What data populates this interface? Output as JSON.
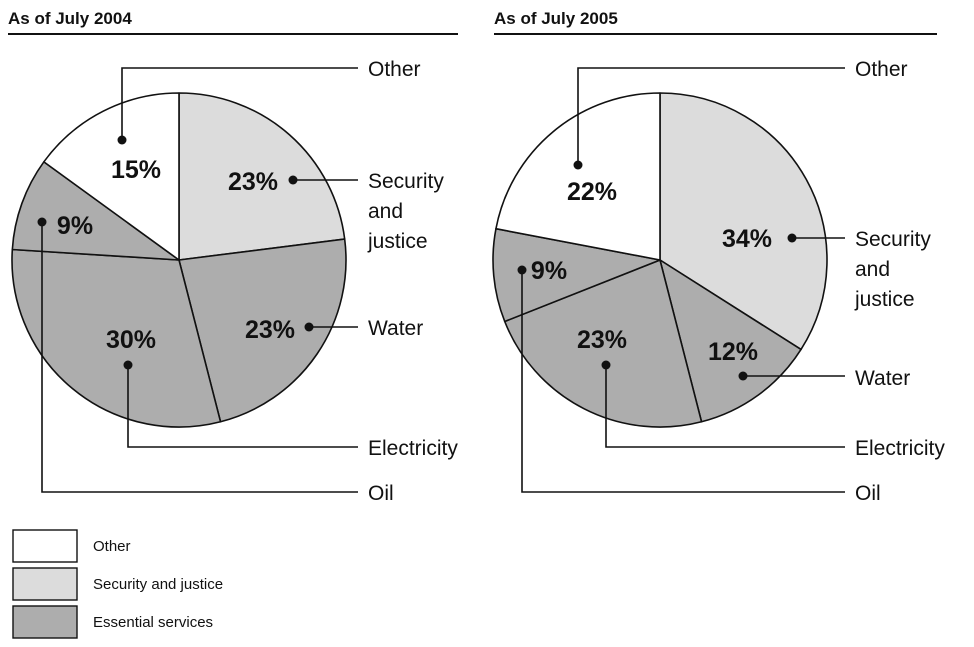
{
  "chart_data": [
    {
      "type": "pie",
      "title": "As of July 2004",
      "slices": [
        {
          "label": "Other",
          "value": 15,
          "value_label": "15%",
          "category": "Other"
        },
        {
          "label": "Security and justice",
          "value": 23,
          "value_label": "23%",
          "category": "Security and justice"
        },
        {
          "label": "Water",
          "value": 23,
          "value_label": "23%",
          "category": "Essential services"
        },
        {
          "label": "Electricity",
          "value": 30,
          "value_label": "30%",
          "category": "Essential services"
        },
        {
          "label": "Oil",
          "value": 9,
          "value_label": "9%",
          "category": "Essential services"
        }
      ],
      "callouts": [
        "Other",
        "Security\nand\njustice",
        "Water",
        "Electricity",
        "Oil"
      ]
    },
    {
      "type": "pie",
      "title": "As of July 2005",
      "slices": [
        {
          "label": "Other",
          "value": 22,
          "value_label": "22%",
          "category": "Other"
        },
        {
          "label": "Security and justice",
          "value": 34,
          "value_label": "34%",
          "category": "Security and justice"
        },
        {
          "label": "Water",
          "value": 12,
          "value_label": "12%",
          "category": "Essential services"
        },
        {
          "label": "Electricity",
          "value": 23,
          "value_label": "23%",
          "category": "Essential services"
        },
        {
          "label": "Oil",
          "value": 9,
          "value_label": "9%",
          "category": "Essential services"
        }
      ],
      "callouts": [
        "Other",
        "Security\nand\njustice",
        "Water",
        "Electricity",
        "Oil"
      ]
    }
  ],
  "legend": [
    {
      "label": "Other",
      "color": "#ffffff"
    },
    {
      "label": "Security and justice",
      "color": "#dcdcdc"
    },
    {
      "label": "Essential services",
      "color": "#adadad"
    }
  ],
  "colors": {
    "Other": "#ffffff",
    "Security and justice": "#dcdcdc",
    "Essential services": "#adadad",
    "stroke": "#111111"
  }
}
